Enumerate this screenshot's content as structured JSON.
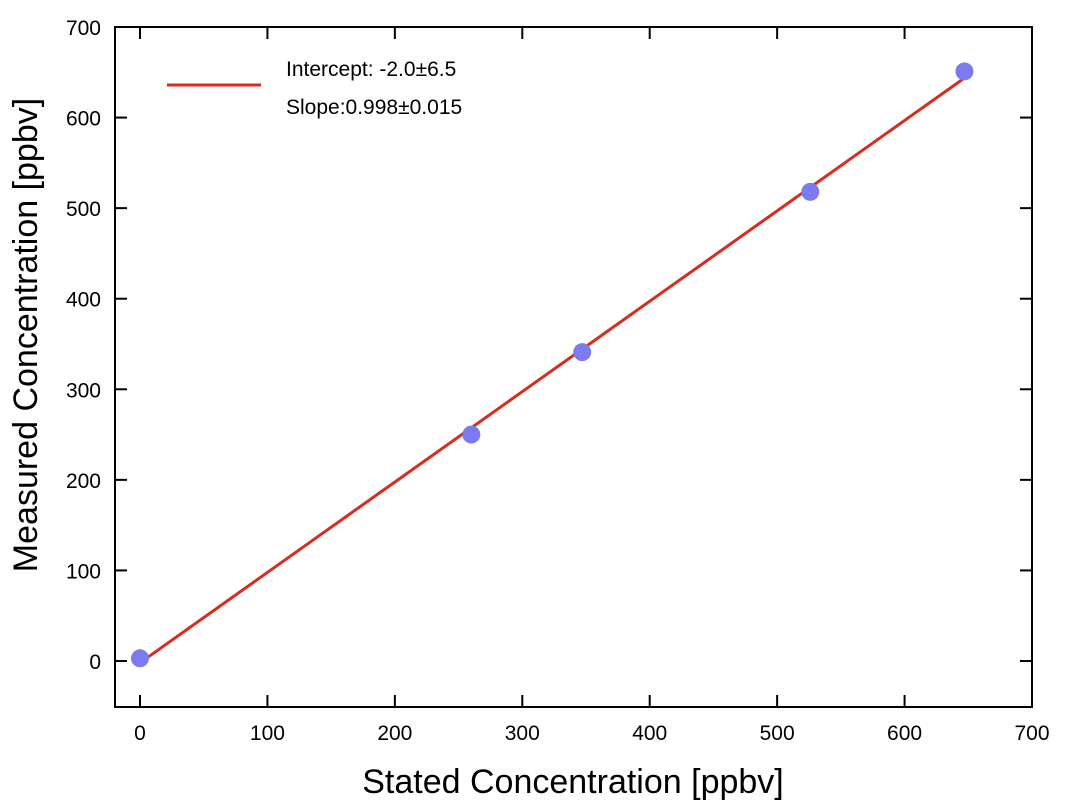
{
  "chart_data": {
    "type": "scatter",
    "xlabel": "Stated Concentration [ppbv]",
    "ylabel": "Measured Concentration [ppbv]",
    "xlim": [
      -20,
      700
    ],
    "ylim": [
      -50,
      700
    ],
    "xticks": [
      0,
      100,
      200,
      300,
      400,
      500,
      600,
      700
    ],
    "yticks": [
      0,
      100,
      200,
      300,
      400,
      500,
      600,
      700
    ],
    "grid": false,
    "legend_position": "top-left",
    "series": [
      {
        "kind": "points",
        "color": "#7b7bef",
        "x": [
          0,
          260,
          347,
          526,
          647
        ],
        "y": [
          3,
          250,
          341,
          518,
          651
        ]
      },
      {
        "kind": "fit-line",
        "color": "#d62d20",
        "intercept": -2.0,
        "slope": 0.998,
        "x_range": [
          0,
          647
        ]
      }
    ],
    "legend": {
      "lines": [
        "Intercept: -2.0±6.5",
        "Slope:0.998±0.015"
      ]
    }
  }
}
